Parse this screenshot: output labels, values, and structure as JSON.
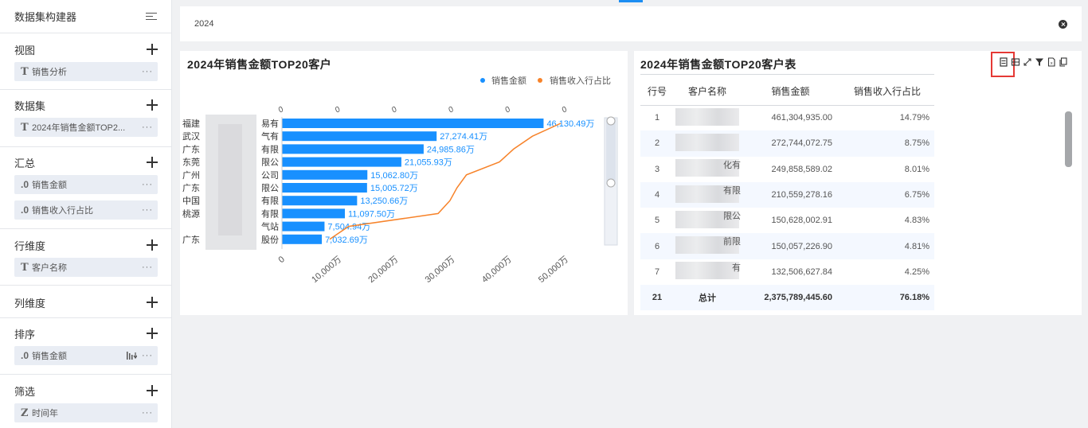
{
  "sidebar": {
    "title": "数据集构建器",
    "sections": [
      {
        "key": "view",
        "title": "视图",
        "items": [
          {
            "type": "T",
            "label": "销售分析"
          }
        ]
      },
      {
        "key": "dataset",
        "title": "数据集",
        "items": [
          {
            "type": "T",
            "label": "2024年销售金额TOP2..."
          }
        ]
      },
      {
        "key": "summary",
        "title": "汇总",
        "items": [
          {
            "type": ".0",
            "label": "销售金额"
          },
          {
            "type": ".0",
            "label": "销售收入行占比"
          }
        ]
      },
      {
        "key": "row-dim",
        "title": "行维度",
        "items": [
          {
            "type": "T",
            "label": "客户名称"
          }
        ]
      },
      {
        "key": "col-dim",
        "title": "列维度",
        "items": []
      },
      {
        "key": "sort",
        "title": "排序",
        "items": [
          {
            "type": ".0",
            "label": "销售金额"
          }
        ]
      },
      {
        "key": "filter",
        "title": "筛选",
        "items": [
          {
            "type": "Z",
            "label": "时间年"
          }
        ]
      }
    ],
    "more_glyph": "···"
  },
  "filterbar": {
    "value": "2024"
  },
  "chart_panel": {
    "title": "2024年销售金额TOP20客户"
  },
  "chart_data": {
    "type": "bar",
    "orientation": "horizontal",
    "title": "2024年销售金额TOP20客户",
    "legend": {
      "placement": "top-right",
      "entries": [
        {
          "name": "销售金额",
          "color": "#1890ff"
        },
        {
          "name": "销售收入行占比",
          "color": "#f7832a"
        }
      ]
    },
    "categories": [
      "福建",
      "武汉",
      "广东",
      "东莞",
      "广州",
      "广东",
      "中国",
      "桃源",
      "",
      "广东"
    ],
    "category_suffixes": [
      "易有",
      "气有",
      "有限",
      "限公",
      "公司",
      "限公",
      "有限",
      "有限",
      "气站",
      "股份"
    ],
    "series": [
      {
        "name": "销售金额",
        "type": "bar",
        "color": "#1890ff",
        "values": [
          46130.49,
          27274.41,
          24985.86,
          21055.93,
          15062.8,
          15005.72,
          13250.66,
          11097.5,
          7504.94,
          7032.69
        ],
        "labels": [
          "46,130.49万",
          "27,274.41万",
          "24,985.86万",
          "21,055.93万",
          "15,062.80万",
          "15,005.72万",
          "13,250.66万",
          "11,097.50万",
          "7,504.94万",
          "7,032.69万"
        ]
      },
      {
        "name": "销售收入行占比",
        "type": "line",
        "color": "#f7832a",
        "values": [
          1.0,
          0.88,
          0.8,
          0.74,
          0.6,
          0.56,
          0.53,
          0.48,
          0.1,
          0.02
        ]
      }
    ],
    "x_ticks": [
      0,
      10000,
      20000,
      30000,
      40000,
      50000
    ],
    "x_tick_labels": [
      "0",
      "10,000万",
      "20,000万",
      "30,000万",
      "40,000万",
      "50,000万"
    ],
    "secondary_tick_labels": [
      "0",
      "0",
      "0",
      "0",
      "0",
      "0"
    ],
    "xlim": [
      0,
      50000
    ],
    "secondary_lim": [
      0,
      1
    ]
  },
  "table_panel": {
    "title": "2024年销售金额TOP20客户表",
    "columns": [
      "行号",
      "客户名称",
      "销售金额",
      "销售收入行占比"
    ],
    "rows": [
      {
        "no": "1",
        "name": "",
        "amount": "461,304,935.00",
        "ratio": "14.79%"
      },
      {
        "no": "2",
        "name": "",
        "amount": "272,744,072.75",
        "ratio": "8.75%"
      },
      {
        "no": "3",
        "name": "化有",
        "amount": "249,858,589.02",
        "ratio": "8.01%"
      },
      {
        "no": "4",
        "name": "有限",
        "amount": "210,559,278.16",
        "ratio": "6.75%"
      },
      {
        "no": "5",
        "name": "限公",
        "amount": "150,628,002.91",
        "ratio": "4.83%"
      },
      {
        "no": "6",
        "name": "前限",
        "amount": "150,057,226.90",
        "ratio": "4.81%"
      },
      {
        "no": "7",
        "name": "有",
        "amount": "132,506,627.84",
        "ratio": "4.25%"
      }
    ],
    "total": {
      "no": "21",
      "name": "总计",
      "amount": "2,375,789,445.60",
      "ratio": "76.18%"
    }
  }
}
